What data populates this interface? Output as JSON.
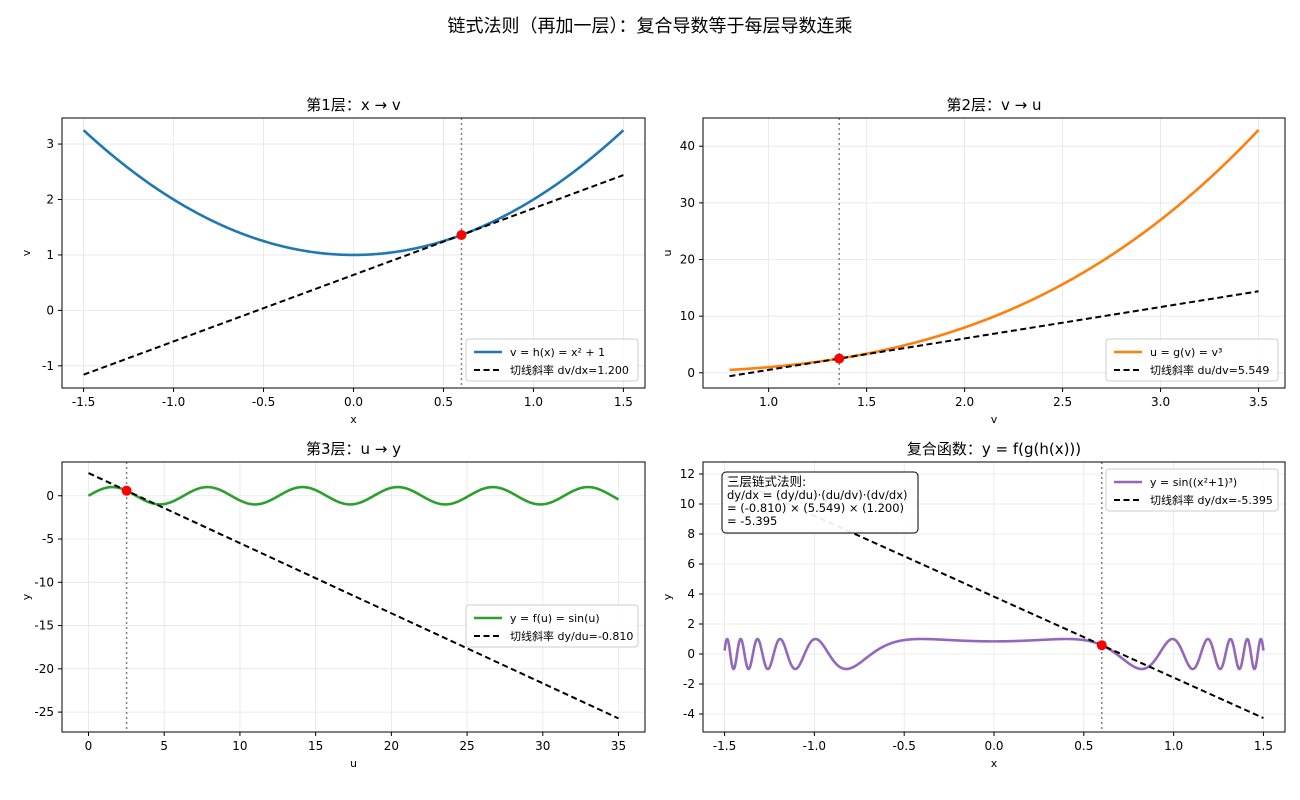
{
  "figure": {
    "suptitle": "链式法则（再加一层）：复合导数等于每层导数连乘"
  },
  "colors": {
    "blue": "#1f77b4",
    "orange": "#ff7f0e",
    "green": "#2ca02c",
    "purple": "#9467bd",
    "point": "#ff0000",
    "tangent": "#000000",
    "vline": "#808080",
    "grid": "#e6e6e6"
  },
  "chart_data": [
    {
      "id": "p1",
      "type": "line",
      "title": "第1层：x → v",
      "xlabel": "x",
      "ylabel": "v",
      "xlim": [
        -1.62,
        1.62
      ],
      "ylim": [
        -1.4,
        3.47
      ],
      "xticks": [
        -1.5,
        -1.0,
        -0.5,
        0.0,
        0.5,
        1.0,
        1.5
      ],
      "xtick_labels": [
        "-1.5",
        "-1.0",
        "-0.5",
        "0.0",
        "0.5",
        "1.0",
        "1.5"
      ],
      "yticks": [
        -1,
        0,
        1,
        2,
        3
      ],
      "ytick_labels": [
        "-1",
        "0",
        "1",
        "2",
        "3"
      ],
      "curve": {
        "func": "h",
        "domain": [
          -1.5,
          1.5
        ],
        "color": "blue",
        "label": "v = h(x) = x² + 1"
      },
      "point": {
        "x": 0.6,
        "y": 1.36
      },
      "tangent": {
        "slope": 1.2,
        "domain": [
          -1.5,
          1.5
        ],
        "label": "切线斜率 dv/dx=1.200"
      },
      "vline_x": 0.6,
      "legend": {
        "position": "lower-right"
      }
    },
    {
      "id": "p2",
      "type": "line",
      "title": "第2层：v → u",
      "xlabel": "v",
      "ylabel": "u",
      "xlim": [
        0.665,
        3.635
      ],
      "ylim": [
        -2.68,
        44.98
      ],
      "xticks": [
        1.0,
        1.5,
        2.0,
        2.5,
        3.0,
        3.5
      ],
      "xtick_labels": [
        "1.0",
        "1.5",
        "2.0",
        "2.5",
        "3.0",
        "3.5"
      ],
      "yticks": [
        0,
        10,
        20,
        30,
        40
      ],
      "ytick_labels": [
        "0",
        "10",
        "20",
        "30",
        "40"
      ],
      "curve": {
        "func": "g",
        "domain": [
          0.8,
          3.5
        ],
        "color": "orange",
        "label": "u = g(v) = v³"
      },
      "point": {
        "x": 1.36,
        "y": 2.515
      },
      "tangent": {
        "slope": 5.549,
        "domain": [
          0.8,
          3.5
        ],
        "label": "切线斜率 du/dv=5.549"
      },
      "vline_x": 1.36,
      "legend": {
        "position": "lower-right"
      }
    },
    {
      "id": "p3",
      "type": "line",
      "title": "第3层：u → y",
      "xlabel": "u",
      "ylabel": "y",
      "xlim": [
        -1.75,
        36.75
      ],
      "ylim": [
        -27.3,
        3.9
      ],
      "xticks": [
        0,
        5,
        10,
        15,
        20,
        25,
        30,
        35
      ],
      "xtick_labels": [
        "0",
        "5",
        "10",
        "15",
        "20",
        "25",
        "30",
        "35"
      ],
      "yticks": [
        0,
        -5,
        -10,
        -15,
        -20,
        -25
      ],
      "ytick_labels": [
        "0",
        "-5",
        "-10",
        "-15",
        "-20",
        "-25"
      ],
      "curve": {
        "func": "f",
        "domain": [
          0,
          35
        ],
        "color": "green",
        "label": "y = f(u) = sin(u)"
      },
      "point": {
        "x": 2.515,
        "y": 0.586
      },
      "tangent": {
        "slope": -0.81,
        "domain": [
          0,
          35
        ],
        "label": "切线斜率 dy/du=-0.810"
      },
      "vline_x": 2.515,
      "legend": {
        "position": "center-right"
      }
    },
    {
      "id": "p4",
      "type": "line",
      "title": "复合函数：y = f(g(h(x)))",
      "xlabel": "x",
      "ylabel": "y",
      "xlim": [
        -1.62,
        1.62
      ],
      "ylim": [
        -5.2,
        12.8
      ],
      "xticks": [
        -1.5,
        -1.0,
        -0.5,
        0.0,
        0.5,
        1.0,
        1.5
      ],
      "xtick_labels": [
        "-1.5",
        "-1.0",
        "-0.5",
        "0.0",
        "0.5",
        "1.0",
        "1.5"
      ],
      "yticks": [
        -4,
        -2,
        0,
        2,
        4,
        6,
        8,
        10,
        12
      ],
      "ytick_labels": [
        "-4",
        "-2",
        "0",
        "2",
        "4",
        "6",
        "8",
        "10",
        "12"
      ],
      "curve": {
        "func": "composite",
        "domain": [
          -1.5,
          1.5
        ],
        "color": "purple",
        "label": "y = sin((x²+1)³)"
      },
      "point": {
        "x": 0.6,
        "y": 0.586
      },
      "tangent": {
        "slope": -5.395,
        "domain": [
          -1.5,
          1.5
        ],
        "label": "切线斜率 dy/dx=-5.395"
      },
      "vline_x": 0.6,
      "legend": {
        "position": "upper-right"
      },
      "annotation": {
        "lines": [
          "三层链式法则:",
          "dy/dx = (dy/du)·(du/dv)·(dv/dx)",
          "= (-0.810) × (5.549) × (1.200)",
          "= -5.395"
        ]
      }
    }
  ]
}
